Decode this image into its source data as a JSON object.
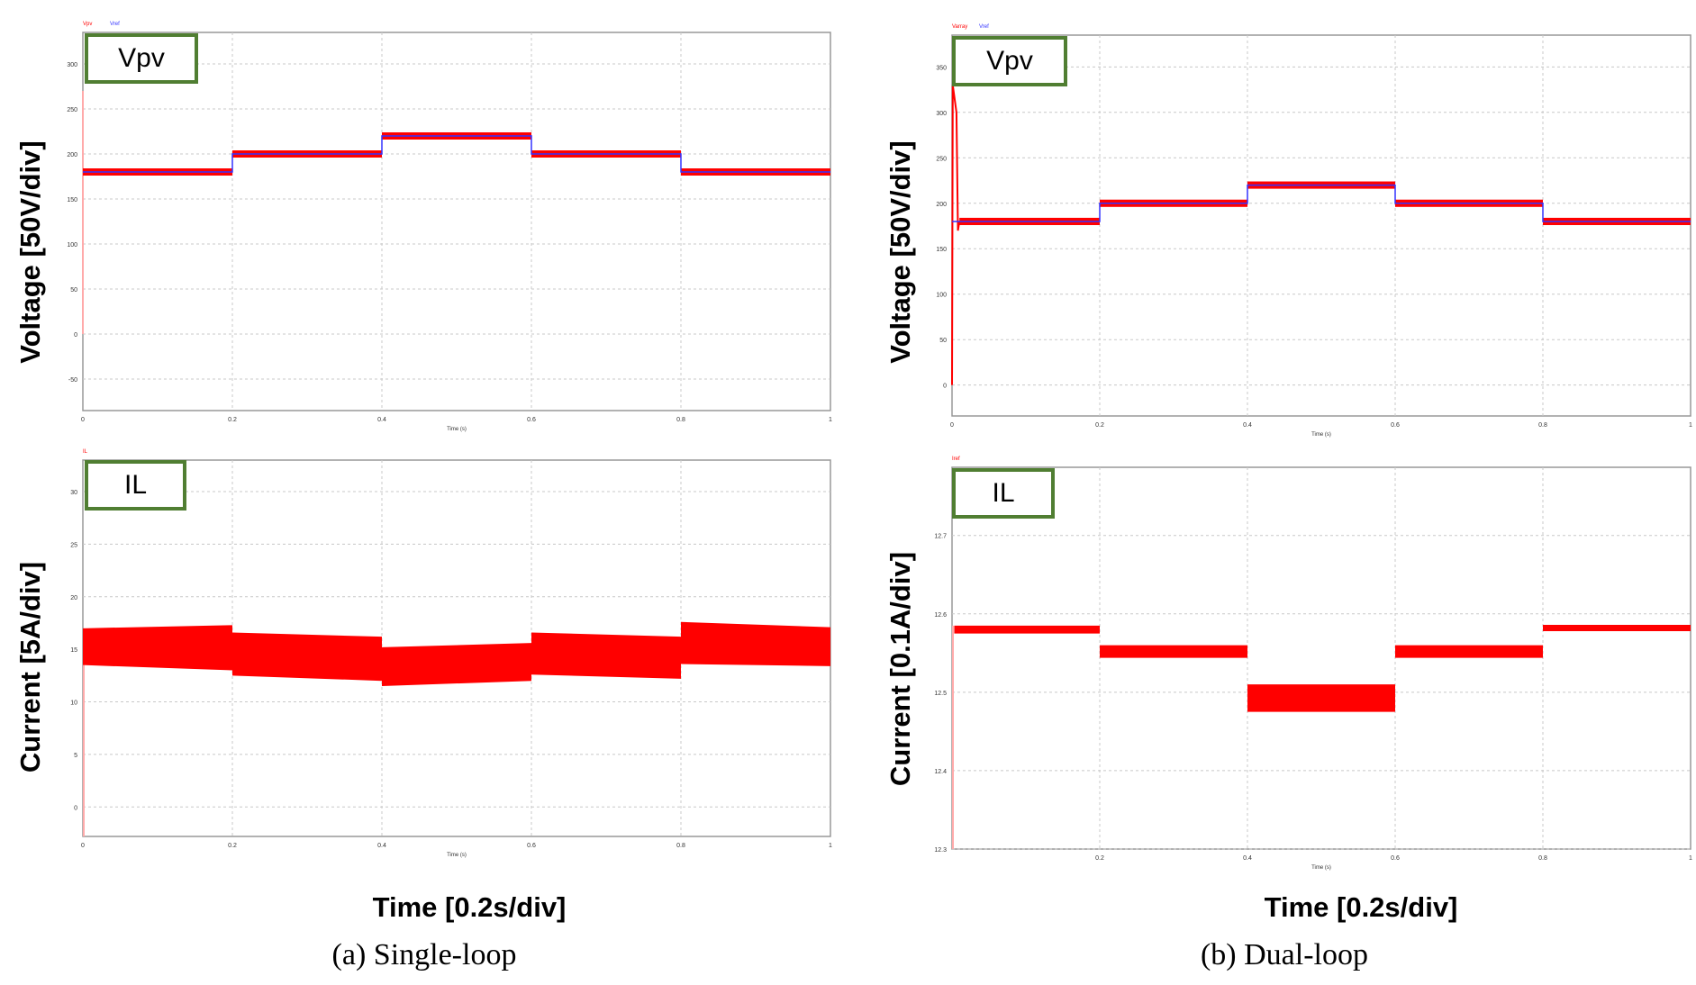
{
  "colors": {
    "signal": "#ff0000",
    "reference": "#3333ff",
    "tag_border": "#507e32",
    "grid": "#c8c8c8"
  },
  "chart_data": [
    {
      "type": "line",
      "panel": "single-loop voltage",
      "tag": "Vpv",
      "ylabel": "Voltage [50V/div]",
      "xlabel_small": "Time (s)",
      "legend": [
        "Vpv",
        "Vref"
      ],
      "xlim": [
        0,
        1
      ],
      "ylim": [
        -85,
        335
      ],
      "xticks": [
        "0",
        "0.2",
        "0.4",
        "0.6",
        "0.8",
        "1"
      ],
      "yticks": [
        -50,
        0,
        50,
        100,
        150,
        200,
        250,
        300
      ],
      "grid": true,
      "segments": [
        {
          "x": [
            0,
            0.2
          ],
          "center": 180,
          "band": 4
        },
        {
          "x": [
            0.2,
            0.4
          ],
          "center": 200,
          "band": 4
        },
        {
          "x": [
            0.4,
            0.6
          ],
          "center": 220,
          "band": 4
        },
        {
          "x": [
            0.6,
            0.8
          ],
          "center": 200,
          "band": 4
        },
        {
          "x": [
            0.8,
            1
          ],
          "center": 180,
          "band": 4
        }
      ]
    },
    {
      "type": "area",
      "panel": "single-loop current",
      "tag": "IL",
      "ylabel": "Current [5A/div]",
      "xlabel_small": "Time (s)",
      "legend": [
        "IL"
      ],
      "xlim": [
        0,
        1
      ],
      "ylim": [
        -2.8,
        33
      ],
      "xticks": [
        "0",
        "0.2",
        "0.4",
        "0.6",
        "0.8",
        "1"
      ],
      "yticks": [
        0,
        5,
        10,
        15,
        20,
        25,
        30
      ],
      "grid": true,
      "segments": [
        {
          "x": [
            0,
            0.2
          ],
          "low": [
            13.5,
            13
          ],
          "high": [
            17,
            17.3
          ]
        },
        {
          "x": [
            0.2,
            0.4
          ],
          "low": [
            12.5,
            12
          ],
          "high": [
            16.6,
            16.2
          ]
        },
        {
          "x": [
            0.4,
            0.6
          ],
          "low": [
            11.5,
            12
          ],
          "high": [
            15.2,
            15.6
          ]
        },
        {
          "x": [
            0.6,
            0.8
          ],
          "low": [
            12.6,
            12.2
          ],
          "high": [
            16.6,
            16.2
          ]
        },
        {
          "x": [
            0.8,
            1
          ],
          "low": [
            13.6,
            13.4
          ],
          "high": [
            17.6,
            17.1
          ]
        }
      ]
    },
    {
      "type": "line",
      "panel": "dual-loop voltage",
      "tag": "Vpv",
      "ylabel": "Voltage [50V/div]",
      "xlabel_small": "Time (s)",
      "legend": [
        "Varray",
        "Vref"
      ],
      "xlim": [
        0,
        1
      ],
      "ylim": [
        -34,
        385
      ],
      "xticks": [
        "0",
        "0.2",
        "0.4",
        "0.6",
        "0.8",
        "1"
      ],
      "yticks": [
        0,
        50,
        100,
        150,
        200,
        250,
        300,
        350
      ],
      "grid": true,
      "startup_peak": 330,
      "segments": [
        {
          "x": [
            0.01,
            0.2
          ],
          "center": 180,
          "band": 4
        },
        {
          "x": [
            0.2,
            0.4
          ],
          "center": 200,
          "band": 4
        },
        {
          "x": [
            0.4,
            0.6
          ],
          "center": 220,
          "band": 4
        },
        {
          "x": [
            0.6,
            0.8
          ],
          "center": 200,
          "band": 4
        },
        {
          "x": [
            0.8,
            1
          ],
          "center": 180,
          "band": 4
        }
      ]
    },
    {
      "type": "area",
      "panel": "dual-loop current",
      "tag": "IL",
      "ylabel": "Current [0.1A/div]",
      "xlabel_small": "Time (s)",
      "legend": [
        "Iref"
      ],
      "xlim": [
        0,
        1
      ],
      "ylim": [
        12.3,
        12.787
      ],
      "xticks": [
        "",
        "0.2",
        "0.4",
        "0.6",
        "0.8",
        "1"
      ],
      "yticks": [
        12.3,
        12.4,
        12.5,
        12.6,
        12.7
      ],
      "grid": true,
      "segments": [
        {
          "x": [
            0.003,
            0.2
          ],
          "low": [
            12.575,
            12.575
          ],
          "high": [
            12.585,
            12.585
          ]
        },
        {
          "x": [
            0.2,
            0.4
          ],
          "low": [
            12.544,
            12.544
          ],
          "high": [
            12.56,
            12.56
          ]
        },
        {
          "x": [
            0.4,
            0.6
          ],
          "low": [
            12.475,
            12.475
          ],
          "high": [
            12.51,
            12.51
          ]
        },
        {
          "x": [
            0.6,
            0.8
          ],
          "low": [
            12.544,
            12.544
          ],
          "high": [
            12.56,
            12.56
          ]
        },
        {
          "x": [
            0.8,
            1
          ],
          "low": [
            12.578,
            12.578
          ],
          "high": [
            12.586,
            12.586
          ]
        }
      ]
    }
  ],
  "xlabel": "Time [0.2s/div]",
  "captions": [
    "(a) Single-loop",
    "(b) Dual-loop"
  ]
}
